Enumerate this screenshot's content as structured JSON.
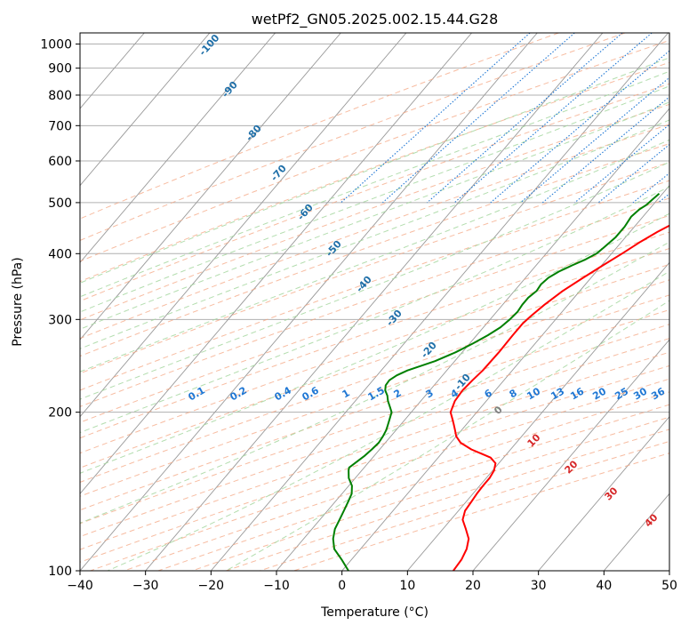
{
  "chart_data": {
    "type": "line",
    "subtype": "skew-t log-p diagram",
    "title": "wetPf2_GN05.2025.002.15.44.G28",
    "xlabel": "Temperature (°C)",
    "ylabel": "Pressure (hPa)",
    "xlim": [
      -40,
      50
    ],
    "ylim": [
      1050,
      100
    ],
    "yscale": "log",
    "grid": true,
    "x_ticks": [
      -40,
      -30,
      -20,
      -10,
      0,
      10,
      20,
      30,
      40,
      50
    ],
    "x_tick_labels": [
      "−40",
      "−30",
      "−20",
      "−10",
      "0",
      "10",
      "20",
      "30",
      "40",
      "50"
    ],
    "y_ticks": [
      100,
      200,
      300,
      400,
      500,
      600,
      700,
      800,
      900,
      1000
    ],
    "y_tick_labels": [
      "100",
      "200",
      "300",
      "400",
      "500",
      "600",
      "700",
      "800",
      "900",
      "1000"
    ],
    "colors": {
      "temperature": "#ff0000",
      "dewpoint": "#008000",
      "isotherm": "#999999",
      "dry_adiabat": "#f4a582",
      "moist_adiabat": "#a6d7a0",
      "mixing_ratio": "#1f77d4",
      "isotherm_label": "#1f6fa8",
      "moist_label": "#d62728",
      "zero_label": "#808080"
    },
    "isotherm_labels": [
      "-100",
      "-90",
      "-80",
      "-70",
      "-60",
      "-50",
      "-40",
      "-30",
      "-20",
      "-10"
    ],
    "moist_adiabat_labels": [
      "0",
      "10",
      "20",
      "30",
      "40"
    ],
    "mixing_ratio_labels": [
      "0.1",
      "0.2",
      "0.4",
      "0.6",
      "1",
      "1.5",
      "2",
      "3",
      "4",
      "6",
      "8",
      "10",
      "13",
      "16",
      "20",
      "25",
      "30",
      "36"
    ],
    "series": [
      {
        "key": "temperature",
        "points": [
          [
            520,
            12.5
          ],
          [
            500,
            10.0
          ],
          [
            480,
            7.8
          ],
          [
            460,
            5.8
          ],
          [
            440,
            4.2
          ],
          [
            420,
            2.8
          ],
          [
            400,
            1.6
          ],
          [
            380,
            0.2
          ],
          [
            360,
            -1.2
          ],
          [
            340,
            -2.6
          ],
          [
            320,
            -3.6
          ],
          [
            305,
            -4.2
          ],
          [
            295,
            -4.5
          ],
          [
            280,
            -4.5
          ],
          [
            260,
            -4.4
          ],
          [
            240,
            -4.5
          ],
          [
            230,
            -4.8
          ],
          [
            220,
            -5.0
          ],
          [
            210,
            -4.8
          ],
          [
            200,
            -4.0
          ],
          [
            195,
            -3.0
          ],
          [
            190,
            -2.0
          ],
          [
            185,
            -1.0
          ],
          [
            180,
            0.0
          ],
          [
            175,
            1.5
          ],
          [
            170,
            4.0
          ],
          [
            167,
            6.0
          ],
          [
            164,
            8.0
          ],
          [
            160,
            9.5
          ],
          [
            155,
            10.2
          ],
          [
            150,
            10.5
          ],
          [
            145,
            10.5
          ],
          [
            140,
            10.6
          ],
          [
            135,
            10.8
          ],
          [
            130,
            11.0
          ],
          [
            125,
            11.8
          ],
          [
            120,
            13.5
          ],
          [
            115,
            15.2
          ],
          [
            110,
            16.2
          ],
          [
            105,
            16.8
          ],
          [
            100,
            17.0
          ]
        ]
      },
      {
        "key": "dewpoint",
        "points": [
          [
            520,
            -0.5
          ],
          [
            505,
            -0.8
          ],
          [
            495,
            -1.0
          ],
          [
            485,
            -1.5
          ],
          [
            470,
            -1.8
          ],
          [
            450,
            -1.5
          ],
          [
            430,
            -1.5
          ],
          [
            410,
            -2.0
          ],
          [
            400,
            -2.3
          ],
          [
            390,
            -3.2
          ],
          [
            380,
            -4.5
          ],
          [
            370,
            -5.7
          ],
          [
            360,
            -6.5
          ],
          [
            350,
            -6.8
          ],
          [
            340,
            -6.6
          ],
          [
            330,
            -7.0
          ],
          [
            320,
            -7.0
          ],
          [
            310,
            -6.8
          ],
          [
            300,
            -7.0
          ],
          [
            290,
            -7.4
          ],
          [
            280,
            -8.3
          ],
          [
            270,
            -9.5
          ],
          [
            260,
            -11.0
          ],
          [
            250,
            -13.0
          ],
          [
            245,
            -14.5
          ],
          [
            240,
            -16.0
          ],
          [
            235,
            -17.0
          ],
          [
            230,
            -17.5
          ],
          [
            225,
            -17.4
          ],
          [
            220,
            -16.8
          ],
          [
            215,
            -15.8
          ],
          [
            210,
            -15.0
          ],
          [
            205,
            -14.0
          ],
          [
            200,
            -13.0
          ],
          [
            195,
            -12.5
          ],
          [
            190,
            -12.0
          ],
          [
            185,
            -11.5
          ],
          [
            180,
            -11.2
          ],
          [
            175,
            -11.0
          ],
          [
            170,
            -11.2
          ],
          [
            165,
            -11.5
          ],
          [
            160,
            -12.0
          ],
          [
            157,
            -12.3
          ],
          [
            155,
            -12.0
          ],
          [
            150,
            -11.0
          ],
          [
            145,
            -9.5
          ],
          [
            140,
            -8.5
          ],
          [
            135,
            -8.0
          ],
          [
            130,
            -7.5
          ],
          [
            125,
            -7.0
          ],
          [
            120,
            -6.5
          ],
          [
            115,
            -5.5
          ],
          [
            110,
            -4.0
          ],
          [
            105,
            -1.5
          ],
          [
            100,
            1.0
          ]
        ]
      }
    ]
  }
}
